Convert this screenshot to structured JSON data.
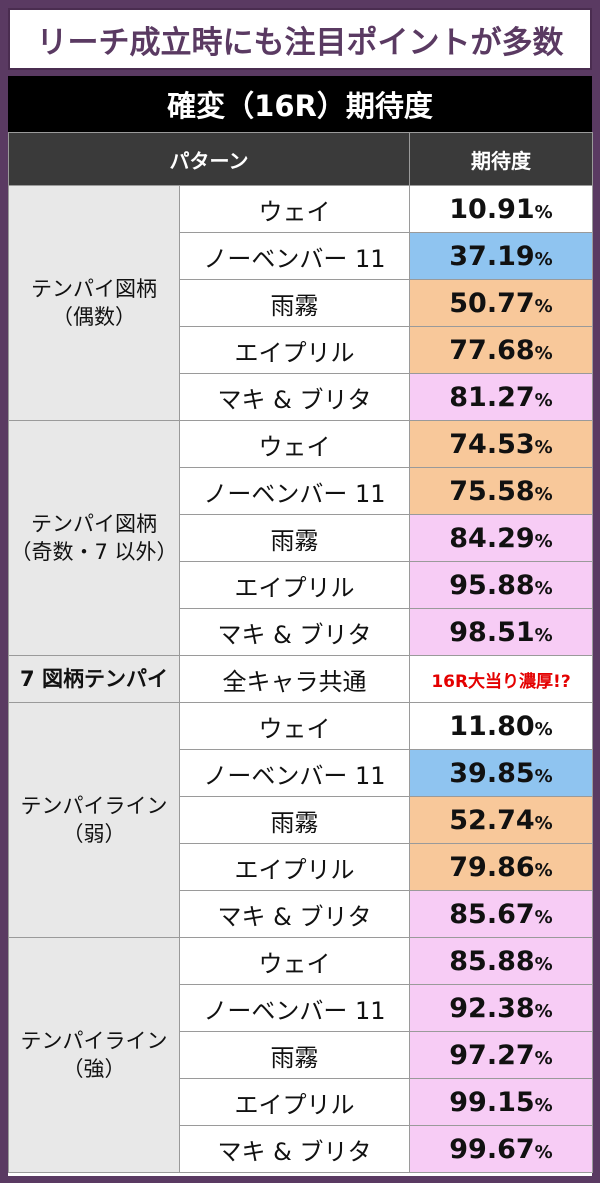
{
  "banner": {
    "title": "リーチ成立時にも注目ポイントが多数"
  },
  "table": {
    "title": "確変（16R）期待度",
    "headers": {
      "pattern": "パターン",
      "expectation": "期待度"
    },
    "percent_sign": "%",
    "colors": {
      "white": "#ffffff",
      "blue": "#8fc4f0",
      "orange": "#f8c89a",
      "pink": "#f7ccf5"
    },
    "groups": [
      {
        "label_line1": "テンパイ図柄",
        "label_line2": "（偶数）",
        "rows": [
          {
            "name": "ウェイ",
            "value": "10.91",
            "color": "white"
          },
          {
            "name": "ノーベンバー 11",
            "value": "37.19",
            "color": "blue"
          },
          {
            "name": "雨霧",
            "value": "50.77",
            "color": "orange"
          },
          {
            "name": "エイプリル",
            "value": "77.68",
            "color": "orange"
          },
          {
            "name": "マキ & ブリタ",
            "value": "81.27",
            "color": "pink"
          }
        ]
      },
      {
        "label_line1": "テンパイ図柄",
        "label_line2": "（奇数・7 以外）",
        "rows": [
          {
            "name": "ウェイ",
            "value": "74.53",
            "color": "orange"
          },
          {
            "name": "ノーベンバー 11",
            "value": "75.58",
            "color": "orange"
          },
          {
            "name": "雨霧",
            "value": "84.29",
            "color": "pink"
          },
          {
            "name": "エイプリル",
            "value": "95.88",
            "color": "pink"
          },
          {
            "name": "マキ & ブリタ",
            "value": "98.51",
            "color": "pink"
          }
        ]
      },
      {
        "label_line1": "7 図柄テンパイ",
        "single": true,
        "name": "全キャラ共通",
        "special": "16R大当り濃厚!?"
      },
      {
        "label_line1": "テンパイライン",
        "label_line2": "（弱）",
        "rows": [
          {
            "name": "ウェイ",
            "value": "11.80",
            "color": "white"
          },
          {
            "name": "ノーベンバー 11",
            "value": "39.85",
            "color": "blue"
          },
          {
            "name": "雨霧",
            "value": "52.74",
            "color": "orange"
          },
          {
            "name": "エイプリル",
            "value": "79.86",
            "color": "orange"
          },
          {
            "name": "マキ & ブリタ",
            "value": "85.67",
            "color": "pink"
          }
        ]
      },
      {
        "label_line1": "テンパイライン",
        "label_line2": "（強）",
        "rows": [
          {
            "name": "ウェイ",
            "value": "85.88",
            "color": "pink"
          },
          {
            "name": "ノーベンバー 11",
            "value": "92.38",
            "color": "pink"
          },
          {
            "name": "雨霧",
            "value": "97.27",
            "color": "pink"
          },
          {
            "name": "エイプリル",
            "value": "99.15",
            "color": "pink"
          },
          {
            "name": "マキ & ブリタ",
            "value": "99.67",
            "color": "pink"
          }
        ]
      }
    ]
  }
}
